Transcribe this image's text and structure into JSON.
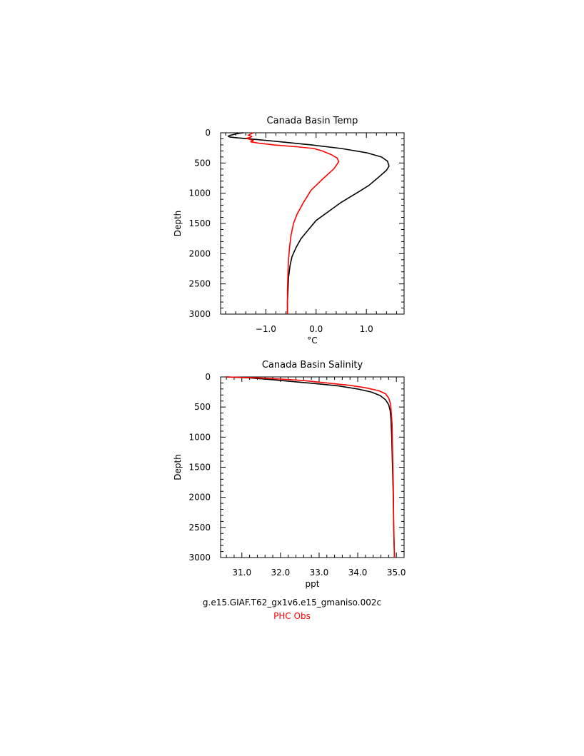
{
  "chart_data": [
    {
      "type": "line",
      "title": "Canada Basin Temp",
      "xlabel": "°C",
      "ylabel": "Depth",
      "xlim": [
        -1.9,
        1.75
      ],
      "ylim": [
        3000,
        0
      ],
      "y_inverted": true,
      "xticks": [
        -1.0,
        0.0,
        1.0
      ],
      "xtick_labels": [
        "−1.0",
        "0.0",
        "1.0"
      ],
      "yticks": [
        0,
        500,
        1000,
        1500,
        2000,
        2500,
        3000
      ],
      "ytick_labels": [
        "0",
        "500",
        "1000",
        "1500",
        "2000",
        "2500",
        "3000"
      ],
      "series": [
        {
          "name": "g.e15.GIAF.T62_gx1v6.e15_gmaniso.002c",
          "color": "#000000",
          "points": [
            [
              -1.45,
              0
            ],
            [
              -1.5,
              5
            ],
            [
              -1.6,
              20
            ],
            [
              -1.7,
              40
            ],
            [
              -1.75,
              55
            ],
            [
              -1.72,
              70
            ],
            [
              -1.55,
              85
            ],
            [
              -1.2,
              110
            ],
            [
              -0.7,
              150
            ],
            [
              -0.1,
              200
            ],
            [
              0.5,
              260
            ],
            [
              1.0,
              330
            ],
            [
              1.3,
              400
            ],
            [
              1.42,
              470
            ],
            [
              1.45,
              550
            ],
            [
              1.4,
              620
            ],
            [
              1.25,
              730
            ],
            [
              1.05,
              870
            ],
            [
              0.8,
              1000
            ],
            [
              0.5,
              1150
            ],
            [
              0.25,
              1300
            ],
            [
              0.0,
              1450
            ],
            [
              -0.15,
              1600
            ],
            [
              -0.3,
              1750
            ],
            [
              -0.4,
              1900
            ],
            [
              -0.48,
              2050
            ],
            [
              -0.52,
              2200
            ],
            [
              -0.55,
              2400
            ],
            [
              -0.56,
              2600
            ],
            [
              -0.57,
              2800
            ],
            [
              -0.57,
              3000
            ]
          ]
        },
        {
          "name": "PHC Obs",
          "color": "#ff0000",
          "points": [
            [
              -1.25,
              0
            ],
            [
              -1.3,
              20
            ],
            [
              -1.35,
              40
            ],
            [
              -1.28,
              60
            ],
            [
              -1.3,
              75
            ],
            [
              -1.38,
              90
            ],
            [
              -1.32,
              110
            ],
            [
              -1.25,
              130
            ],
            [
              -1.3,
              150
            ],
            [
              -1.15,
              170
            ],
            [
              -0.85,
              200
            ],
            [
              -0.4,
              230
            ],
            [
              -0.05,
              260
            ],
            [
              0.12,
              300
            ],
            [
              0.3,
              360
            ],
            [
              0.42,
              420
            ],
            [
              0.45,
              480
            ],
            [
              0.35,
              600
            ],
            [
              0.15,
              750
            ],
            [
              -0.1,
              950
            ],
            [
              -0.25,
              1150
            ],
            [
              -0.38,
              1350
            ],
            [
              -0.45,
              1500
            ],
            [
              -0.5,
              1700
            ],
            [
              -0.53,
              1900
            ],
            [
              -0.55,
              2100
            ],
            [
              -0.56,
              2300
            ],
            [
              -0.57,
              2600
            ],
            [
              -0.57,
              3000
            ]
          ]
        }
      ]
    },
    {
      "type": "line",
      "title": "Canada Basin Salinity",
      "xlabel": "ppt",
      "ylabel": "Depth",
      "xlim": [
        30.45,
        35.2
      ],
      "ylim": [
        3000,
        0
      ],
      "y_inverted": true,
      "xticks": [
        31.0,
        32.0,
        33.0,
        34.0,
        35.0
      ],
      "xtick_labels": [
        "31.0",
        "32.0",
        "33.0",
        "34.0",
        "35.0"
      ],
      "yticks": [
        0,
        500,
        1000,
        1500,
        2000,
        2500,
        3000
      ],
      "ytick_labels": [
        "0",
        "500",
        "1000",
        "1500",
        "2000",
        "2500",
        "3000"
      ],
      "series": [
        {
          "name": "g.e15.GIAF.T62_gx1v6.e15_gmaniso.002c",
          "color": "#000000",
          "points": [
            [
              30.6,
              0
            ],
            [
              31.2,
              15
            ],
            [
              31.7,
              40
            ],
            [
              32.2,
              70
            ],
            [
              32.9,
              110
            ],
            [
              33.5,
              150
            ],
            [
              34.0,
              200
            ],
            [
              34.35,
              250
            ],
            [
              34.58,
              310
            ],
            [
              34.72,
              380
            ],
            [
              34.8,
              460
            ],
            [
              34.84,
              560
            ],
            [
              34.86,
              700
            ],
            [
              34.88,
              1000
            ],
            [
              34.9,
              1500
            ],
            [
              34.92,
              2000
            ],
            [
              34.93,
              2500
            ],
            [
              34.95,
              3000
            ]
          ]
        },
        {
          "name": "PHC Obs",
          "color": "#ff0000",
          "points": [
            [
              30.6,
              0
            ],
            [
              31.4,
              15
            ],
            [
              32.0,
              35
            ],
            [
              32.6,
              60
            ],
            [
              33.2,
              100
            ],
            [
              33.8,
              140
            ],
            [
              34.2,
              180
            ],
            [
              34.55,
              230
            ],
            [
              34.72,
              280
            ],
            [
              34.8,
              350
            ],
            [
              34.85,
              450
            ],
            [
              34.87,
              600
            ],
            [
              34.89,
              800
            ],
            [
              34.9,
              1200
            ],
            [
              34.92,
              1800
            ],
            [
              34.93,
              2400
            ],
            [
              34.95,
              3000
            ]
          ]
        }
      ]
    }
  ],
  "legend": {
    "line1": "g.e15.GIAF.T62_gx1v6.e15_gmaniso.002c",
    "line1_color": "#000000",
    "line2": "PHC Obs",
    "line2_color": "#ff0000"
  }
}
